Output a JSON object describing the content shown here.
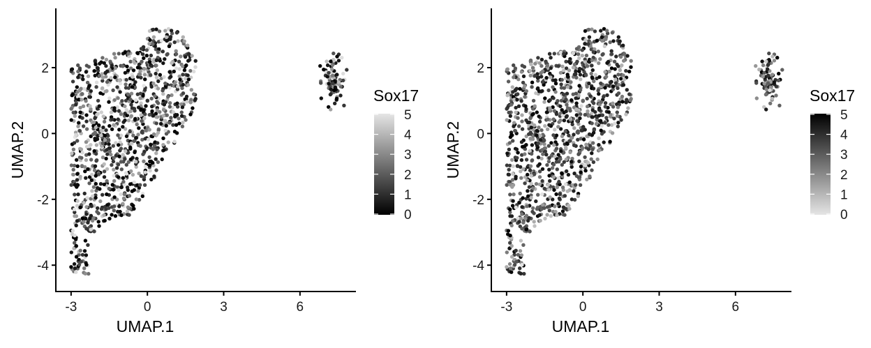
{
  "chart_data": [
    {
      "type": "scatter",
      "panel": "left",
      "xlabel": "UMAP.1",
      "ylabel": "UMAP.2",
      "xlim": [
        -3.6,
        8.2
      ],
      "ylim": [
        -4.8,
        3.8
      ],
      "xticks": [
        -3,
        0,
        3,
        6
      ],
      "yticks": [
        -4,
        -2,
        0,
        2
      ],
      "legend": {
        "title": "Sox17",
        "ticks": [
          0,
          1,
          2,
          3,
          4,
          5
        ],
        "low_color": "#000000",
        "high_color": "#e5e5e5",
        "placement": "right"
      },
      "seed": 11
    },
    {
      "type": "scatter",
      "panel": "right",
      "xlabel": "UMAP.1",
      "ylabel": "UMAP.2",
      "xlim": [
        -3.6,
        8.2
      ],
      "ylim": [
        -4.8,
        3.8
      ],
      "xticks": [
        -3,
        0,
        3,
        6
      ],
      "yticks": [
        -4,
        -2,
        0,
        2
      ],
      "legend": {
        "title": "Sox17",
        "ticks": [
          0,
          1,
          2,
          3,
          4,
          5
        ],
        "low_color": "#e5e5e5",
        "high_color": "#000000",
        "placement": "right"
      },
      "seed": 11
    }
  ]
}
